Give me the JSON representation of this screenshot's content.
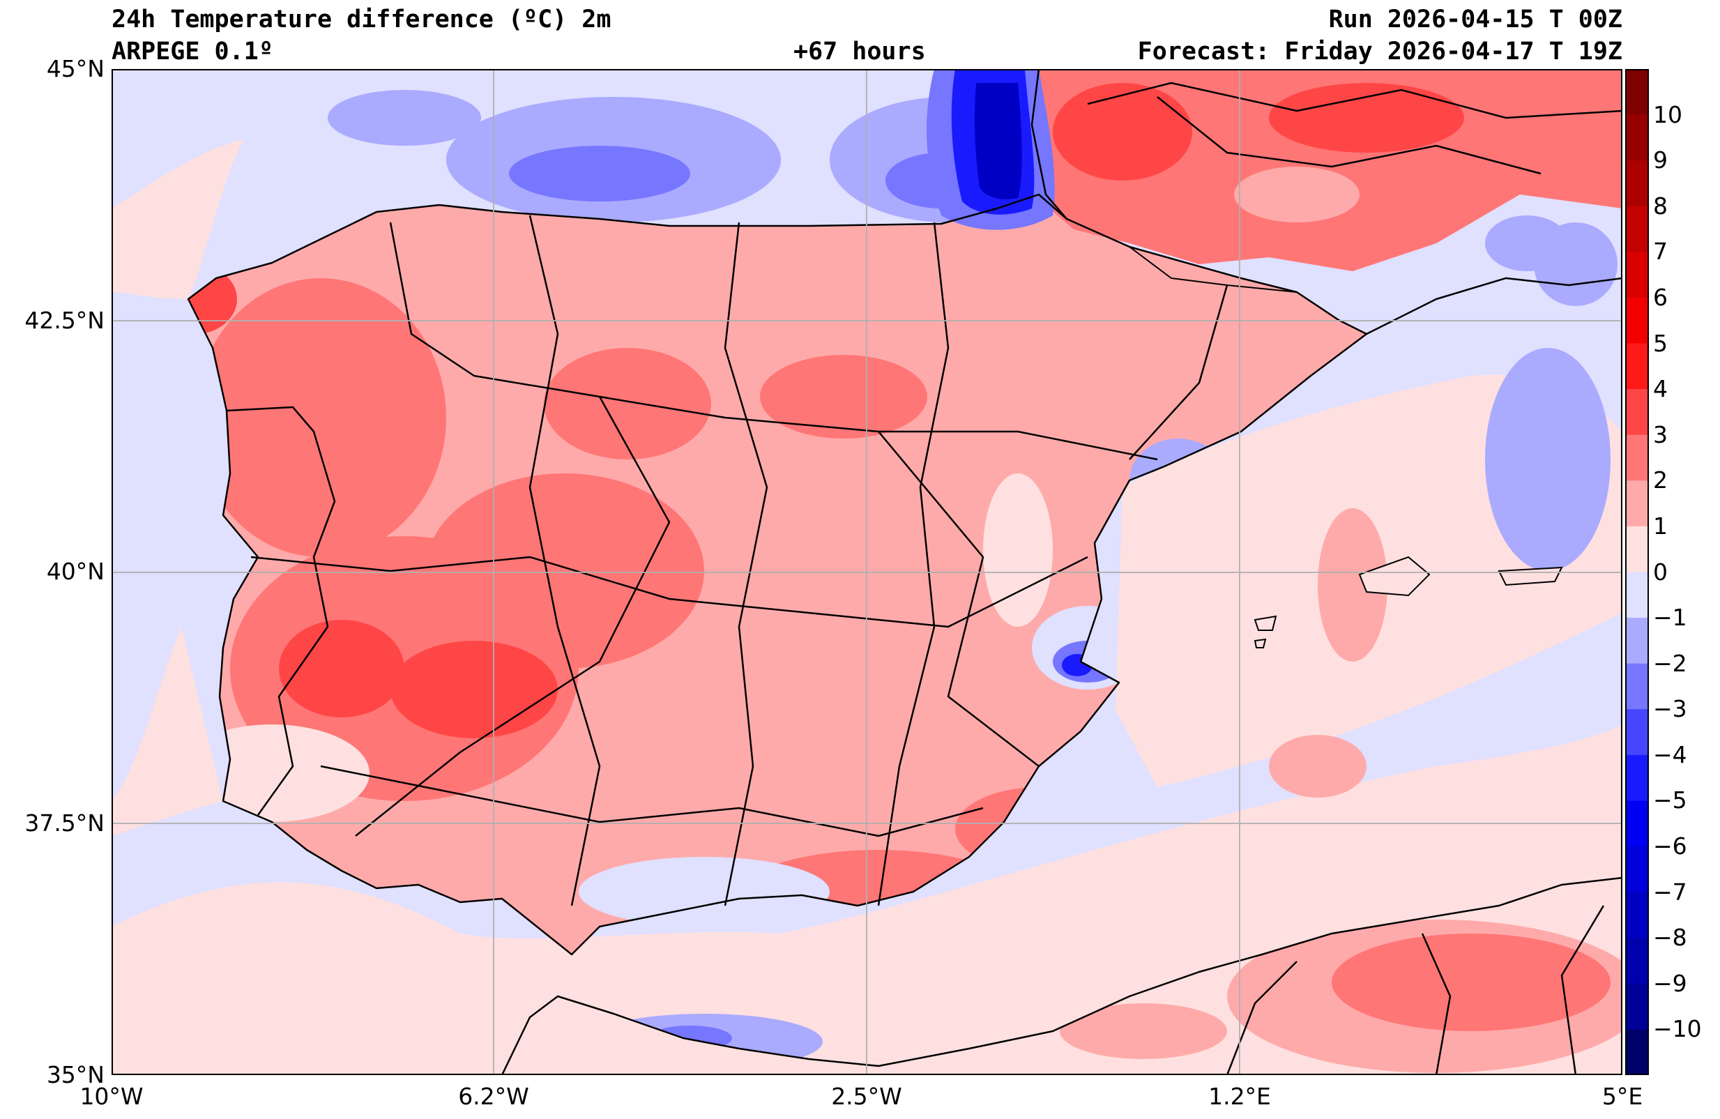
{
  "header": {
    "title": "24h Temperature difference (ºC) 2m",
    "model": "ARPEGE 0.1º",
    "lead_time": "+67 hours",
    "run": "Run 2026-04-15 T 00Z",
    "forecast": "Forecast: Friday 2026-04-17 T 19Z"
  },
  "axes": {
    "lat_labels": [
      "45°N",
      "42.5°N",
      "40°N",
      "37.5°N",
      "35°N"
    ],
    "lon_labels": [
      "10°W",
      "6.2°W",
      "2.5°W",
      "1.2°E",
      "5°E"
    ],
    "lat_range": [
      35,
      45
    ],
    "lon_range": [
      -10,
      5
    ],
    "grid": true
  },
  "colorbar": {
    "labels": [
      "10",
      "9",
      "8",
      "7",
      "6",
      "5",
      "4",
      "3",
      "2",
      "1",
      "0",
      "−1",
      "−2",
      "−3",
      "−4",
      "−5",
      "−6",
      "−7",
      "−8",
      "−9",
      "−10"
    ],
    "range": [
      -11,
      11
    ],
    "colors_top_to_bottom": [
      "#800000",
      "#960000",
      "#ad0000",
      "#c40000",
      "#db0000",
      "#f20000",
      "#ff1a1a",
      "#ff4646",
      "#ff7676",
      "#ffaaaa",
      "#ffe0e0",
      "#e0e0ff",
      "#aaaaff",
      "#7676ff",
      "#4646ff",
      "#1a1aff",
      "#0000f2",
      "#0000db",
      "#0000c4",
      "#0000ad",
      "#000096",
      "#00006b"
    ]
  },
  "map": {
    "colors": {
      "sea_neutral": "#e0e0ff",
      "land_warm": "#ffaaaa",
      "warm_strong": "#ff7676",
      "warm_hot": "#ff4646",
      "light_warm": "#ffe0e0",
      "cool": "#aaaaff",
      "cold": "#7676ff",
      "very_cold": "#1a1aff",
      "deep_cold": "#0000c4"
    }
  }
}
